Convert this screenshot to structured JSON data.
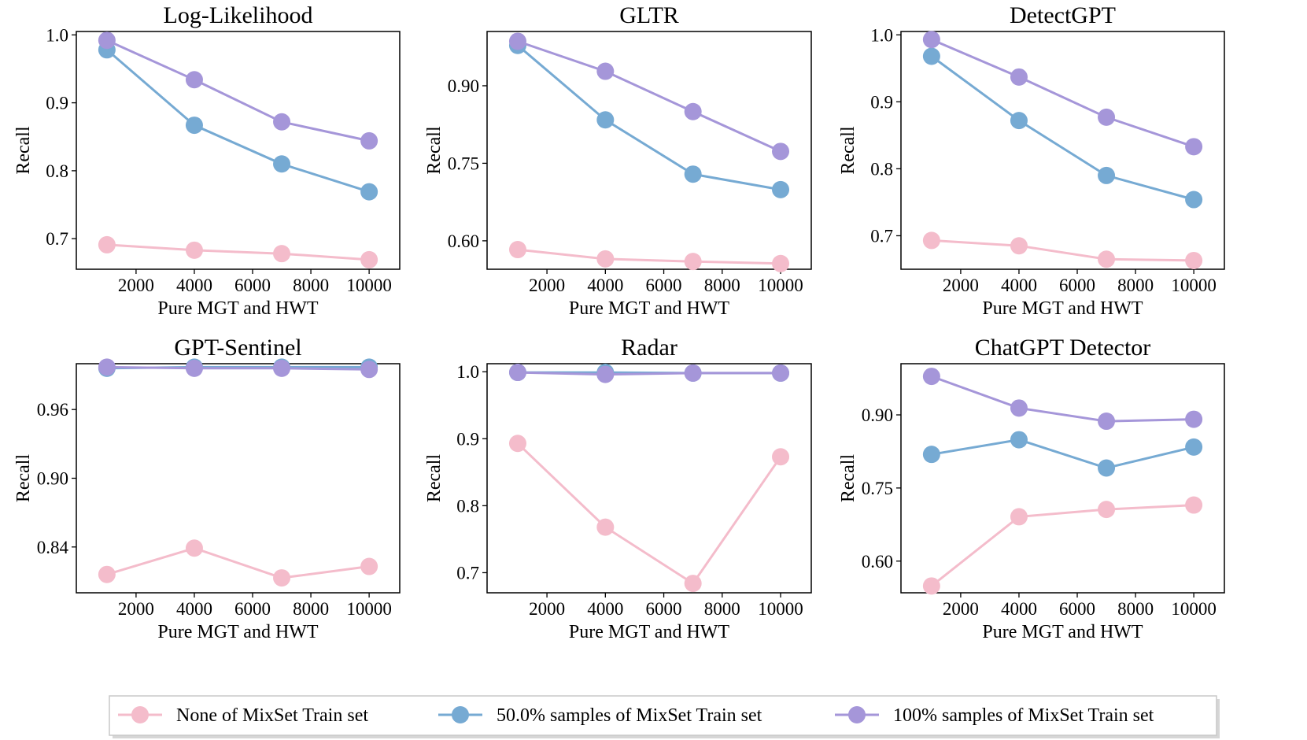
{
  "figure": {
    "colors": {
      "none": "#f4bccb",
      "half": "#76aad3",
      "full": "#a596d9"
    },
    "legend": [
      {
        "key": "none",
        "label": "None of MixSet Train set"
      },
      {
        "key": "half",
        "label": "50.0% samples of MixSet Train set"
      },
      {
        "key": "full",
        "label": "100% samples of MixSet Train set"
      }
    ]
  },
  "chart_data": [
    {
      "type": "line",
      "title": "Log-Likelihood",
      "xlabel": "Pure MGT and HWT",
      "ylabel": "Recall",
      "x": [
        1000,
        4000,
        7000,
        10000
      ],
      "xlim": [
        -50,
        11050
      ],
      "xticks": [
        2000,
        4000,
        6000,
        8000,
        10000
      ],
      "ylim": [
        0.655,
        1.005
      ],
      "yticks": [
        0.7,
        0.8,
        0.9,
        1.0
      ],
      "ytick_labels": [
        "0.7",
        "0.8",
        "0.9",
        "1.0"
      ],
      "series": [
        {
          "name": "None of MixSet Train set",
          "key": "none",
          "values": [
            0.691,
            0.683,
            0.678,
            0.669
          ]
        },
        {
          "name": "50.0% samples of MixSet Train set",
          "key": "half",
          "values": [
            0.978,
            0.867,
            0.81,
            0.769
          ]
        },
        {
          "name": "100% samples of MixSet Train set",
          "key": "full",
          "values": [
            0.992,
            0.934,
            0.872,
            0.844
          ]
        }
      ]
    },
    {
      "type": "line",
      "title": "GLTR",
      "xlabel": "Pure MGT and HWT",
      "ylabel": "Recall",
      "x": [
        1000,
        4000,
        7000,
        10000
      ],
      "xlim": [
        -50,
        11050
      ],
      "xticks": [
        2000,
        4000,
        6000,
        8000,
        10000
      ],
      "ylim": [
        0.545,
        1.005
      ],
      "yticks": [
        0.6,
        0.75,
        0.9
      ],
      "ytick_labels": [
        "0.60",
        "0.75",
        "0.90"
      ],
      "series": [
        {
          "name": "None of MixSet Train set",
          "key": "none",
          "values": [
            0.583,
            0.565,
            0.56,
            0.556
          ]
        },
        {
          "name": "50.0% samples of MixSet Train set",
          "key": "half",
          "values": [
            0.978,
            0.834,
            0.729,
            0.699
          ]
        },
        {
          "name": "100% samples of MixSet Train set",
          "key": "full",
          "values": [
            0.986,
            0.928,
            0.85,
            0.773
          ]
        }
      ]
    },
    {
      "type": "line",
      "title": "DetectGPT",
      "xlabel": "Pure MGT and HWT",
      "ylabel": "Recall",
      "x": [
        1000,
        4000,
        7000,
        10000
      ],
      "xlim": [
        -50,
        11050
      ],
      "xticks": [
        2000,
        4000,
        6000,
        8000,
        10000
      ],
      "ylim": [
        0.65,
        1.005
      ],
      "yticks": [
        0.7,
        0.8,
        0.9,
        1.0
      ],
      "ytick_labels": [
        "0.7",
        "0.8",
        "0.9",
        "1.0"
      ],
      "series": [
        {
          "name": "None of MixSet Train set",
          "key": "none",
          "values": [
            0.693,
            0.685,
            0.665,
            0.663
          ]
        },
        {
          "name": "50.0% samples of MixSet Train set",
          "key": "half",
          "values": [
            0.968,
            0.872,
            0.79,
            0.754
          ]
        },
        {
          "name": "100% samples of MixSet Train set",
          "key": "full",
          "values": [
            0.993,
            0.937,
            0.877,
            0.833
          ]
        }
      ]
    },
    {
      "type": "line",
      "title": "GPT-Sentinel",
      "xlabel": "Pure MGT and HWT",
      "ylabel": "Recall",
      "x": [
        1000,
        4000,
        7000,
        10000
      ],
      "xlim": [
        -50,
        11050
      ],
      "xticks": [
        2000,
        4000,
        6000,
        8000,
        10000
      ],
      "ylim": [
        0.8,
        1.0
      ],
      "yticks": [
        0.84,
        0.9,
        0.96
      ],
      "ytick_labels": [
        "0.84",
        "0.90",
        "0.96"
      ],
      "series": [
        {
          "name": "None of MixSet Train set",
          "key": "none",
          "values": [
            0.816,
            0.839,
            0.813,
            0.823
          ]
        },
        {
          "name": "50.0% samples of MixSet Train set",
          "key": "half",
          "values": [
            0.996,
            0.997,
            0.997,
            0.997
          ]
        },
        {
          "name": "100% samples of MixSet Train set",
          "key": "full",
          "values": [
            0.997,
            0.996,
            0.996,
            0.995
          ]
        }
      ]
    },
    {
      "type": "line",
      "title": "Radar",
      "xlabel": "Pure MGT and HWT",
      "ylabel": "Recall",
      "x": [
        1000,
        4000,
        7000,
        10000
      ],
      "xlim": [
        -50,
        11050
      ],
      "xticks": [
        2000,
        4000,
        6000,
        8000,
        10000
      ],
      "ylim": [
        0.67,
        1.012
      ],
      "yticks": [
        0.7,
        0.8,
        0.9,
        1.0
      ],
      "ytick_labels": [
        "0.7",
        "0.8",
        "0.9",
        "1.0"
      ],
      "series": [
        {
          "name": "None of MixSet Train set",
          "key": "none",
          "values": [
            0.893,
            0.768,
            0.684,
            0.873
          ]
        },
        {
          "name": "50.0% samples of MixSet Train set",
          "key": "half",
          "values": [
            0.999,
            0.999,
            0.998,
            0.998
          ]
        },
        {
          "name": "100% samples of MixSet Train set",
          "key": "full",
          "values": [
            0.999,
            0.996,
            0.998,
            0.998
          ]
        }
      ]
    },
    {
      "type": "line",
      "title": "ChatGPT Detector",
      "xlabel": "Pure MGT and HWT",
      "ylabel": "Recall",
      "x": [
        1000,
        4000,
        7000,
        10000
      ],
      "xlim": [
        -50,
        11050
      ],
      "xticks": [
        2000,
        4000,
        6000,
        8000,
        10000
      ],
      "ylim": [
        0.535,
        1.005
      ],
      "yticks": [
        0.6,
        0.75,
        0.9
      ],
      "ytick_labels": [
        "0.60",
        "0.75",
        "0.90"
      ],
      "series": [
        {
          "name": "None of MixSet Train set",
          "key": "none",
          "values": [
            0.549,
            0.691,
            0.706,
            0.715
          ]
        },
        {
          "name": "50.0% samples of MixSet Train set",
          "key": "half",
          "values": [
            0.819,
            0.849,
            0.791,
            0.834
          ]
        },
        {
          "name": "100% samples of MixSet Train set",
          "key": "full",
          "values": [
            0.979,
            0.914,
            0.887,
            0.891
          ]
        }
      ]
    }
  ]
}
